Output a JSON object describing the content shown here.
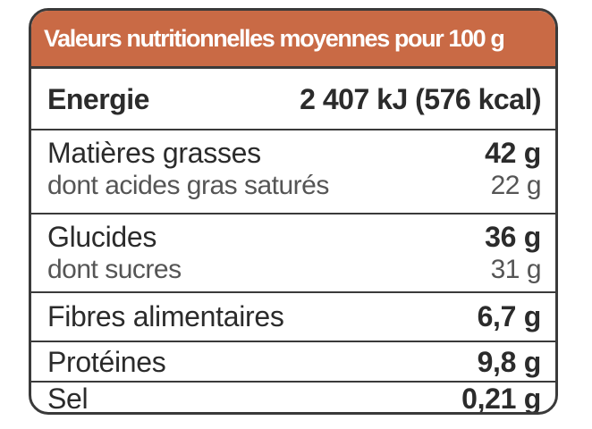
{
  "header": {
    "title": "Valeurs nutritionnelles moyennes pour 100 g"
  },
  "energy": {
    "label": "Energie",
    "value": "2 407 kJ (576 kcal)"
  },
  "fat": {
    "label": "Matières grasses",
    "value": "42 g",
    "sub_label": "dont acides gras saturés",
    "sub_value": "22 g"
  },
  "carbs": {
    "label": "Glucides",
    "value": "36 g",
    "sub_label": "dont sucres",
    "sub_value": "31 g"
  },
  "fibre": {
    "label": "Fibres alimentaires",
    "value": "6,7 g"
  },
  "protein": {
    "label": "Protéines",
    "value": "9,8 g"
  },
  "salt": {
    "label": "Sel",
    "value": "0,21 g"
  },
  "colors": {
    "header_bg": "#c96a45",
    "border": "#3a3a3a"
  }
}
